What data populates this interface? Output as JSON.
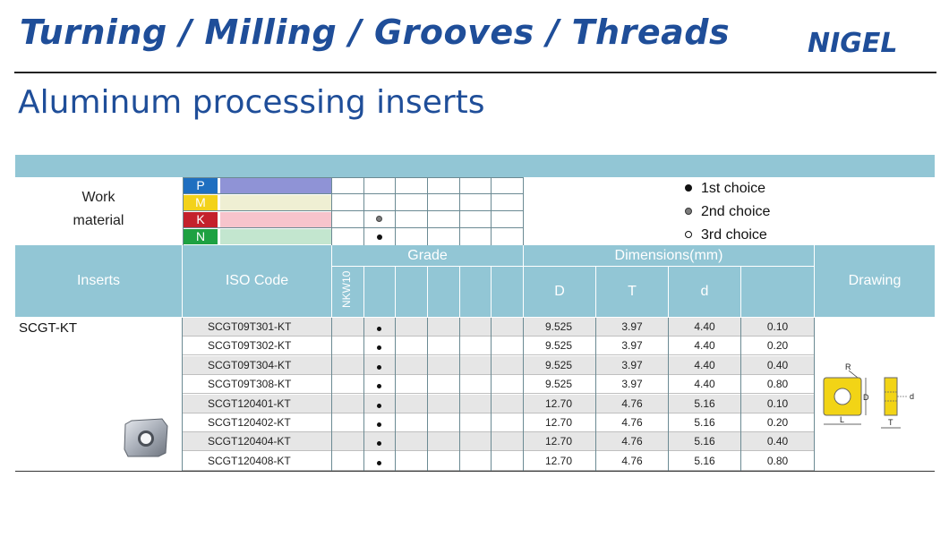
{
  "header": {
    "title": "Turning / Milling / Grooves / Threads",
    "brand": "NIGEL"
  },
  "subtitle": "Aluminum processing inserts",
  "work_material": {
    "label_line1": "Work",
    "label_line2": "material",
    "materials": [
      {
        "code": "P",
        "color": "#1f6fc0",
        "bar_color": "#8f93d6"
      },
      {
        "code": "M",
        "color": "#f3d21a",
        "bar_color": "#efefd3"
      },
      {
        "code": "K",
        "color": "#c4212c",
        "bar_color": "#f7c4cc"
      },
      {
        "code": "N",
        "color": "#1ea142",
        "bar_color": "#c3e6cf"
      }
    ]
  },
  "legend": {
    "first": "1st choice",
    "second": "2nd choice",
    "third": "3rd choice"
  },
  "table": {
    "col_inserts": "Inserts",
    "col_iso": "ISO Code",
    "col_grade": "Grade",
    "grade_name": "NKW10",
    "col_dimensions": "Dimensions(mm)",
    "dim_D": "D",
    "dim_T": "T",
    "dim_d": "d",
    "col_drawing": "Drawing",
    "series": "SCGT-KT",
    "rows": [
      {
        "code": "SCGT09T301-KT",
        "D": "9.525",
        "T": "3.97",
        "d": "4.40",
        "r": "0.10"
      },
      {
        "code": "SCGT09T302-KT",
        "D": "9.525",
        "T": "3.97",
        "d": "4.40",
        "r": "0.20"
      },
      {
        "code": "SCGT09T304-KT",
        "D": "9.525",
        "T": "3.97",
        "d": "4.40",
        "r": "0.40"
      },
      {
        "code": "SCGT09T308-KT",
        "D": "9.525",
        "T": "3.97",
        "d": "4.40",
        "r": "0.80"
      },
      {
        "code": "SCGT120401-KT",
        "D": "12.70",
        "T": "4.76",
        "d": "5.16",
        "r": "0.10"
      },
      {
        "code": "SCGT120402-KT",
        "D": "12.70",
        "T": "4.76",
        "d": "5.16",
        "r": "0.20"
      },
      {
        "code": "SCGT120404-KT",
        "D": "12.70",
        "T": "4.76",
        "d": "5.16",
        "r": "0.40"
      },
      {
        "code": "SCGT120408-KT",
        "D": "12.70",
        "T": "4.76",
        "d": "5.16",
        "r": "0.80"
      }
    ]
  },
  "drawing_labels": {
    "R": "R",
    "D": "D",
    "d": "d",
    "L": "L",
    "T": "T"
  }
}
